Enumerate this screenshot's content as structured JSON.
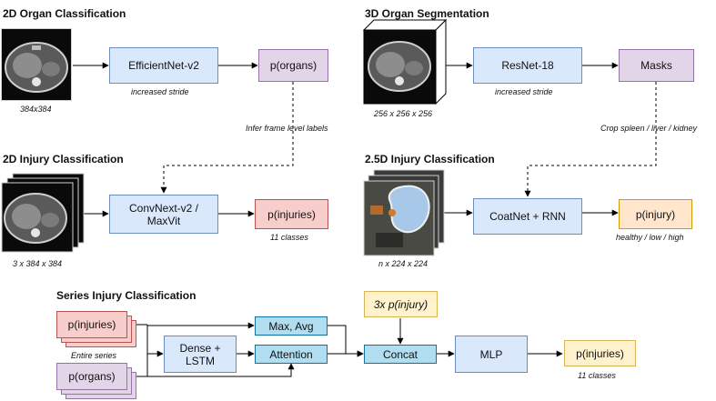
{
  "sections": {
    "organ_cls": "2D Organ Classification",
    "organ_seg": "3D Organ Segmentation",
    "injury_cls": "2D Injury Classification",
    "injury_25d": "2.5D Injury Classification",
    "series": "Series Injury Classification"
  },
  "boxes": {
    "efficientnet": "EfficientNet-v2",
    "p_organs_top": "p(organs)",
    "resnet": "ResNet-18",
    "masks": "Masks",
    "convnext": "ConvNext-v2 /\nMaxVit",
    "p_injuries_2d": "p(injuries)",
    "coatnet": "CoatNet + RNN",
    "p_injury_25d": "p(injury)",
    "series_p_injuries": "p(injuries)",
    "series_p_organs": "p(organs)",
    "dense_lstm": "Dense +\nLSTM",
    "max_avg": "Max, Avg",
    "attention": "Attention",
    "p_injury_3x": "3x p(injury)",
    "concat": "Concat",
    "mlp": "MLP",
    "p_injuries_final": "p(injuries)"
  },
  "captions": {
    "img_384": "384x384",
    "increased_stride_1": "increased stride",
    "img_256": "256 x 256 x 256",
    "increased_stride_2": "increased stride",
    "infer_labels": "Infer frame level labels",
    "crop_organs": "Crop spleen / liver / kidney",
    "img_3x384": "3 x 384 x 384",
    "classes_11_a": "11 classes",
    "img_n224": "n x 224 x 224",
    "healthy_low_high": "healthy / low / high",
    "entire_series": "Entire series",
    "classes_11_b": "11 classes"
  },
  "icons": [
    "ct-scan-thumbnail",
    "ct-stack-thumbnail",
    "cube-volume-thumbnail",
    "organ-crop-thumbnail"
  ],
  "colors": {
    "blue": "#dae8fc",
    "purple": "#e1d5e7",
    "red": "#f8cecc",
    "orange": "#ffe6cc",
    "yellow": "#fff2cc",
    "teal": "#b1ddf0"
  }
}
